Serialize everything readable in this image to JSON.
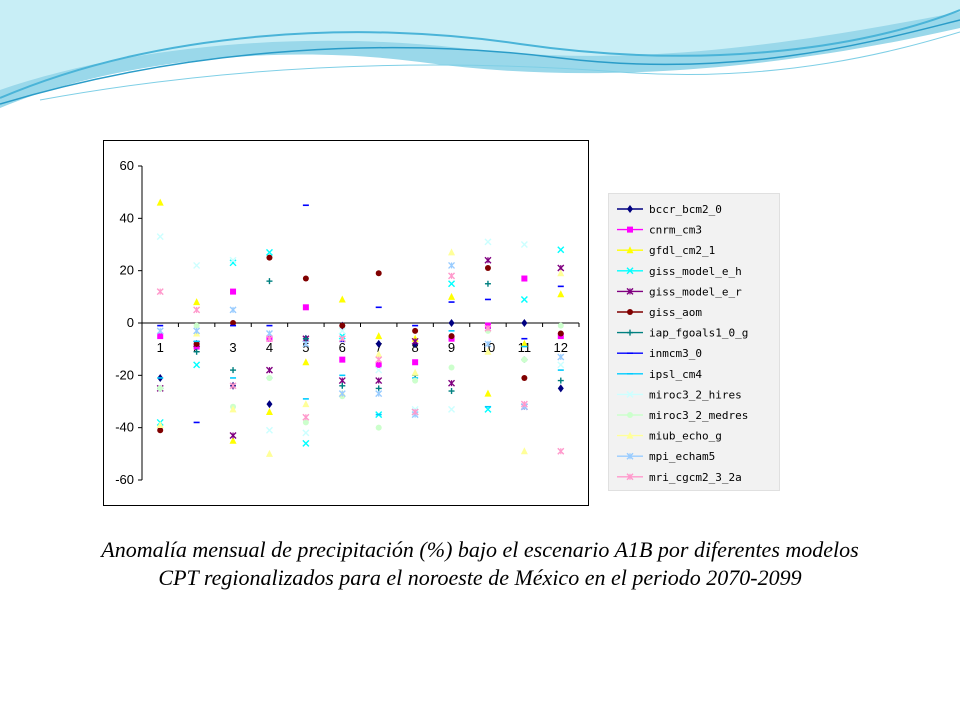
{
  "caption": {
    "line1": "Anomalía mensual de precipitación (%) bajo el escenario A1B por diferentes modelos",
    "line2": "CPT regionalizados para el noroeste de México en el periodo 2070-2099"
  },
  "chart_data": {
    "type": "scatter",
    "categories": [
      "1",
      "2",
      "3",
      "4",
      "5",
      "6",
      "7",
      "8",
      "9",
      "10",
      "11",
      "12"
    ],
    "ylim": [
      -60,
      60
    ],
    "yticks": [
      60,
      40,
      20,
      0,
      -20,
      -40,
      -60
    ],
    "grid": false,
    "legend_position": "right",
    "series": [
      {
        "name": "bccr_bcm2_0",
        "color": "#000080",
        "marker": "diamond",
        "values": [
          -21,
          -8,
          -24,
          -31,
          -6,
          -1,
          -8,
          -8,
          0,
          -2,
          0,
          -25
        ]
      },
      {
        "name": "cnrm_cm3",
        "color": "#ff00ff",
        "marker": "square",
        "values": [
          -5,
          -9,
          12,
          -6,
          6,
          -14,
          -16,
          -15,
          -6,
          -1,
          17,
          -5
        ]
      },
      {
        "name": "gfdl_cm2_1",
        "color": "#ffff00",
        "marker": "triangle",
        "values": [
          46,
          8,
          -45,
          -34,
          -15,
          9,
          -5,
          -6,
          10,
          -27,
          -8,
          11
        ]
      },
      {
        "name": "giss_model_e_h",
        "color": "#00ffff",
        "marker": "x",
        "values": [
          -38,
          -16,
          23,
          27,
          -46,
          -5,
          -35,
          -34,
          15,
          -33,
          9,
          28
        ]
      },
      {
        "name": "giss_model_e_r",
        "color": "#800080",
        "marker": "star",
        "values": [
          -25,
          -8,
          -43,
          -18,
          -6,
          -22,
          -22,
          -7,
          -23,
          24,
          -32,
          21
        ]
      },
      {
        "name": "giss_aom",
        "color": "#800000",
        "marker": "circle",
        "values": [
          -41,
          -8,
          0,
          25,
          17,
          -1,
          19,
          -3,
          -5,
          21,
          -21,
          -4
        ]
      },
      {
        "name": "iap_fgoals1_0_g",
        "color": "#008080",
        "marker": "plus",
        "values": [
          -25,
          -11,
          -18,
          16,
          -6,
          -24,
          -25,
          -20,
          -26,
          15,
          -14,
          -22
        ]
      },
      {
        "name": "inmcm3_0",
        "color": "#0000ff",
        "marker": "dash",
        "values": [
          -1,
          -38,
          -1,
          -1,
          45,
          -7,
          6,
          -1,
          8,
          9,
          -6,
          14
        ]
      },
      {
        "name": "ipsl_cm4",
        "color": "#00ccff",
        "marker": "dash",
        "values": [
          -21,
          -7,
          -21,
          -21,
          -29,
          -20,
          -35,
          -21,
          -3,
          -32,
          -9,
          -18
        ]
      },
      {
        "name": "miroc3_2_hires",
        "color": "#ccffff",
        "marker": "x",
        "values": [
          33,
          22,
          24,
          -41,
          -42,
          -3,
          -18,
          -33,
          -33,
          31,
          30,
          -16
        ]
      },
      {
        "name": "miroc3_2_medres",
        "color": "#ccffcc",
        "marker": "circle",
        "values": [
          -25,
          -1,
          -32,
          -21,
          -38,
          -28,
          -40,
          -22,
          -17,
          -3,
          -14,
          -1
        ]
      },
      {
        "name": "miub_echo_g",
        "color": "#ffff99",
        "marker": "triangle",
        "values": [
          -39,
          -4,
          -33,
          -50,
          -31,
          -27,
          -12,
          -19,
          27,
          -11,
          -49,
          19
        ]
      },
      {
        "name": "mpi_echam5",
        "color": "#99ccff",
        "marker": "star",
        "values": [
          -3,
          -3,
          5,
          -4,
          -8,
          -27,
          -27,
          -35,
          22,
          -8,
          -32,
          -13
        ]
      },
      {
        "name": "mri_cgcm2_3_2a",
        "color": "#ff99cc",
        "marker": "star",
        "values": [
          12,
          5,
          -24,
          -6,
          -36,
          -6,
          -14,
          -34,
          18,
          -2,
          -31,
          -49
        ]
      }
    ]
  }
}
